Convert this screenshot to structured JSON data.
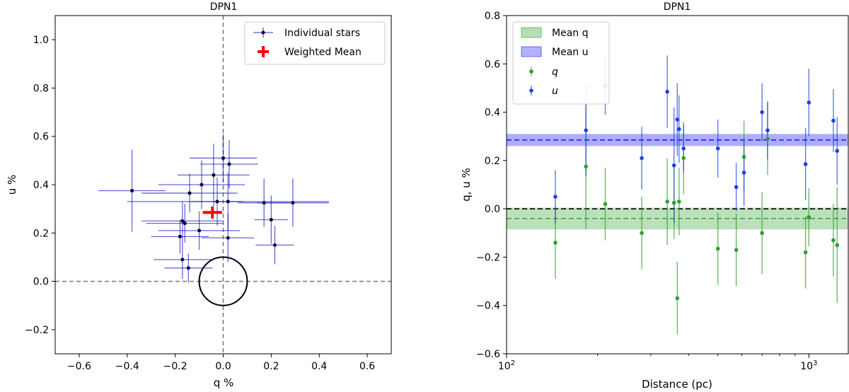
{
  "chart_data": [
    {
      "type": "scatter",
      "title": "DPN1",
      "xlabel": "q %",
      "ylabel": "u %",
      "xlim": [
        -0.7,
        0.7
      ],
      "ylim": [
        -0.3,
        1.1
      ],
      "xticks": [
        -0.6,
        -0.4,
        -0.2,
        0.0,
        0.2,
        0.4,
        0.6
      ],
      "xtick_labels": [
        "−0.6",
        "−0.4",
        "−0.2",
        "0.0",
        "0.2",
        "0.4",
        "0.6"
      ],
      "yticks": [
        -0.2,
        0.0,
        0.2,
        0.4,
        0.6,
        0.8,
        1.0
      ],
      "ytick_labels": [
        "−0.2",
        "0.0",
        "0.2",
        "0.4",
        "0.6",
        "0.8",
        "1.0"
      ],
      "reference_lines": {
        "x": 0.0,
        "y": 0.0,
        "style": "dashed"
      },
      "circle": {
        "center": [
          0.0,
          0.0
        ],
        "radius": 0.1
      },
      "legend_position": "top-right",
      "series": [
        {
          "name": "Individual stars",
          "color": "#0000cc",
          "points": [
            {
              "q": -0.38,
              "u": 0.375,
              "qerr": 0.14,
              "uerr": 0.17
            },
            {
              "q": -0.04,
              "u": 0.44,
              "qerr": 0.15,
              "uerr": 0.13
            },
            {
              "q": 0.0,
              "u": 0.51,
              "qerr": 0.14,
              "uerr": 0.1
            },
            {
              "q": 0.025,
              "u": 0.485,
              "qerr": 0.12,
              "uerr": 0.1
            },
            {
              "q": -0.09,
              "u": 0.4,
              "qerr": 0.18,
              "uerr": 0.1
            },
            {
              "q": -0.14,
              "u": 0.365,
              "qerr": 0.2,
              "uerr": 0.08
            },
            {
              "q": -0.025,
              "u": 0.33,
              "qerr": 0.11,
              "uerr": 0.1
            },
            {
              "q": 0.02,
              "u": 0.33,
              "qerr": 0.42,
              "uerr": 0.12
            },
            {
              "q": 0.17,
              "u": 0.325,
              "qerr": 0.11,
              "uerr": 0.1
            },
            {
              "q": 0.29,
              "u": 0.325,
              "qerr": 0.15,
              "uerr": 0.1
            },
            {
              "q": -0.17,
              "u": 0.25,
              "qerr": 0.17,
              "uerr": 0.08
            },
            {
              "q": -0.16,
              "u": 0.24,
              "qerr": 0.16,
              "uerr": 0.08
            },
            {
              "q": 0.2,
              "u": 0.255,
              "qerr": 0.07,
              "uerr": 0.1
            },
            {
              "q": -0.1,
              "u": 0.21,
              "qerr": 0.17,
              "uerr": 0.08
            },
            {
              "q": 0.02,
              "u": 0.18,
              "qerr": 0.11,
              "uerr": 0.1
            },
            {
              "q": -0.18,
              "u": 0.185,
              "qerr": 0.12,
              "uerr": 0.07
            },
            {
              "q": 0.215,
              "u": 0.15,
              "qerr": 0.08,
              "uerr": 0.08
            },
            {
              "q": -0.17,
              "u": 0.09,
              "qerr": 0.12,
              "uerr": 0.08
            },
            {
              "q": -0.145,
              "u": 0.055,
              "qerr": 0.1,
              "uerr": 0.06
            }
          ]
        },
        {
          "name": "Weighted Mean",
          "color": "#ff0000",
          "points": [
            {
              "q": -0.045,
              "u": 0.285,
              "qerr": 0.04,
              "uerr": 0.025
            }
          ]
        }
      ]
    },
    {
      "type": "scatter",
      "title": "DPN1",
      "xlabel": "Distance (pc)",
      "ylabel": "q, u %",
      "xscale": "log",
      "xlim": [
        100,
        1350
      ],
      "ylim": [
        -0.6,
        0.8
      ],
      "xtick_labels": [
        "10^2",
        "10^3"
      ],
      "yticks": [
        -0.6,
        -0.4,
        -0.2,
        0.0,
        0.2,
        0.4,
        0.6,
        0.8
      ],
      "ytick_labels": [
        "−0.6",
        "−0.4",
        "−0.2",
        "0.0",
        "0.2",
        "0.4",
        "0.6",
        "0.8"
      ],
      "zero_line": 0.0,
      "legend_position": "top-left",
      "bands": [
        {
          "name": "Mean q",
          "center": -0.04,
          "low": -0.085,
          "high": 0.005,
          "color": "#2ca02c"
        },
        {
          "name": "Mean u",
          "center": 0.285,
          "low": 0.26,
          "high": 0.31,
          "color": "#0000ff"
        }
      ],
      "series": [
        {
          "name": "q",
          "color": "#2e9e2e",
          "points": [
            {
              "x": 145,
              "y": -0.14,
              "err": 0.15
            },
            {
              "x": 183,
              "y": 0.175,
              "err": 0.26
            },
            {
              "x": 212,
              "y": 0.02,
              "err": 0.15
            },
            {
              "x": 280,
              "y": -0.1,
              "err": 0.15
            },
            {
              "x": 340,
              "y": 0.03,
              "err": 0.18
            },
            {
              "x": 358,
              "y": 0.025,
              "err": 0.15
            },
            {
              "x": 367,
              "y": -0.37,
              "err": 0.15
            },
            {
              "x": 372,
              "y": 0.03,
              "err": 0.14
            },
            {
              "x": 385,
              "y": 0.21,
              "err": 0.15
            },
            {
              "x": 500,
              "y": -0.165,
              "err": 0.15
            },
            {
              "x": 575,
              "y": -0.17,
              "err": 0.15
            },
            {
              "x": 610,
              "y": 0.215,
              "err": 0.15
            },
            {
              "x": 700,
              "y": -0.1,
              "err": 0.17
            },
            {
              "x": 730,
              "y": 0.29,
              "err": 0.15
            },
            {
              "x": 975,
              "y": -0.18,
              "err": 0.15
            },
            {
              "x": 1000,
              "y": -0.035,
              "err": 0.12
            },
            {
              "x": 1205,
              "y": -0.13,
              "err": 0.15
            },
            {
              "x": 1240,
              "y": -0.15,
              "err": 0.24
            }
          ]
        },
        {
          "name": "u",
          "color": "#1f3fe6",
          "points": [
            {
              "x": 145,
              "y": 0.05,
              "err": 0.11
            },
            {
              "x": 183,
              "y": 0.325,
              "err": 0.19
            },
            {
              "x": 212,
              "y": 0.51,
              "err": 0.12
            },
            {
              "x": 280,
              "y": 0.21,
              "err": 0.13
            },
            {
              "x": 340,
              "y": 0.485,
              "err": 0.15
            },
            {
              "x": 358,
              "y": 0.18,
              "err": 0.24
            },
            {
              "x": 367,
              "y": 0.37,
              "err": 0.15
            },
            {
              "x": 372,
              "y": 0.33,
              "err": 0.14
            },
            {
              "x": 385,
              "y": 0.25,
              "err": 0.1
            },
            {
              "x": 500,
              "y": 0.25,
              "err": 0.12
            },
            {
              "x": 575,
              "y": 0.09,
              "err": 0.1
            },
            {
              "x": 610,
              "y": 0.15,
              "err": 0.14
            },
            {
              "x": 700,
              "y": 0.4,
              "err": 0.12
            },
            {
              "x": 730,
              "y": 0.325,
              "err": 0.12
            },
            {
              "x": 975,
              "y": 0.185,
              "err": 0.15
            },
            {
              "x": 1000,
              "y": 0.44,
              "err": 0.14
            },
            {
              "x": 1205,
              "y": 0.365,
              "err": 0.13
            },
            {
              "x": 1240,
              "y": 0.24,
              "err": 0.14
            }
          ]
        }
      ]
    }
  ]
}
